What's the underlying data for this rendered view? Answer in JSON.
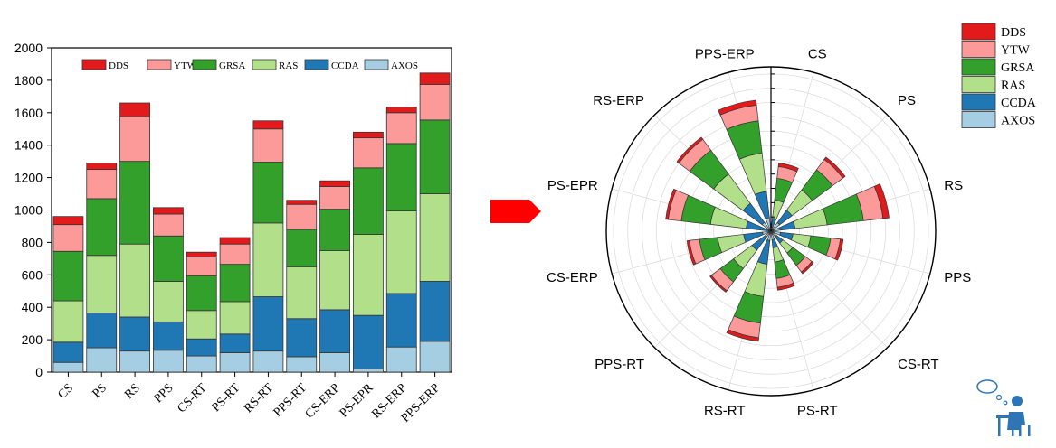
{
  "colors": {
    "DDS": "#e31a1c",
    "YTW": "#fb9a99",
    "GRSA": "#33a02c",
    "RAS": "#b2df8a",
    "CCDA": "#1f78b4",
    "AXOS": "#a6cee3",
    "arrow": "#ff0000"
  },
  "chart_data": [
    {
      "type": "bar",
      "stacked": true,
      "categories": [
        "CS",
        "PS",
        "RS",
        "PPS",
        "CS-RT",
        "PS-RT",
        "RS-RT",
        "PPS-RT",
        "CS-ERP",
        "PS-EPR",
        "RS-ERP",
        "PPS-ERP"
      ],
      "series": [
        {
          "name": "AXOS",
          "values": [
            60,
            150,
            130,
            135,
            100,
            120,
            130,
            95,
            120,
            20,
            155,
            190
          ]
        },
        {
          "name": "CCDA",
          "values": [
            125,
            215,
            210,
            175,
            105,
            115,
            335,
            235,
            265,
            330,
            330,
            370
          ]
        },
        {
          "name": "RAS",
          "values": [
            255,
            355,
            450,
            250,
            175,
            200,
            455,
            320,
            365,
            500,
            510,
            540
          ]
        },
        {
          "name": "GRSA",
          "values": [
            305,
            350,
            510,
            280,
            215,
            230,
            375,
            230,
            255,
            410,
            415,
            455
          ]
        },
        {
          "name": "YTW",
          "values": [
            165,
            180,
            275,
            135,
            115,
            125,
            205,
            155,
            140,
            185,
            190,
            220
          ]
        },
        {
          "name": "DDS",
          "values": [
            50,
            40,
            85,
            40,
            30,
            40,
            50,
            25,
            35,
            35,
            35,
            70
          ]
        }
      ],
      "ylim": [
        0,
        2000
      ],
      "yticks": [
        0,
        200,
        400,
        600,
        800,
        1000,
        1200,
        1400,
        1600,
        1800,
        2000
      ],
      "legend_order": [
        "DDS",
        "YTW",
        "GRSA",
        "RAS",
        "CCDA",
        "AXOS"
      ],
      "legend_position": "top"
    },
    {
      "type": "polar-bar",
      "stacked": true,
      "categories": [
        "CS",
        "PS",
        "RS",
        "PPS",
        "CS-RT",
        "PS-RT",
        "RS-RT",
        "PPS-RT",
        "CS-ERP",
        "PS-EPR",
        "RS-ERP",
        "PPS-ERP"
      ],
      "series_from": "same values as the stacked bar chart",
      "rlim": [
        0,
        2300
      ],
      "legend_order": [
        "DDS",
        "YTW",
        "GRSA",
        "RAS",
        "CCDA",
        "AXOS"
      ],
      "legend_position": "top-right"
    }
  ]
}
